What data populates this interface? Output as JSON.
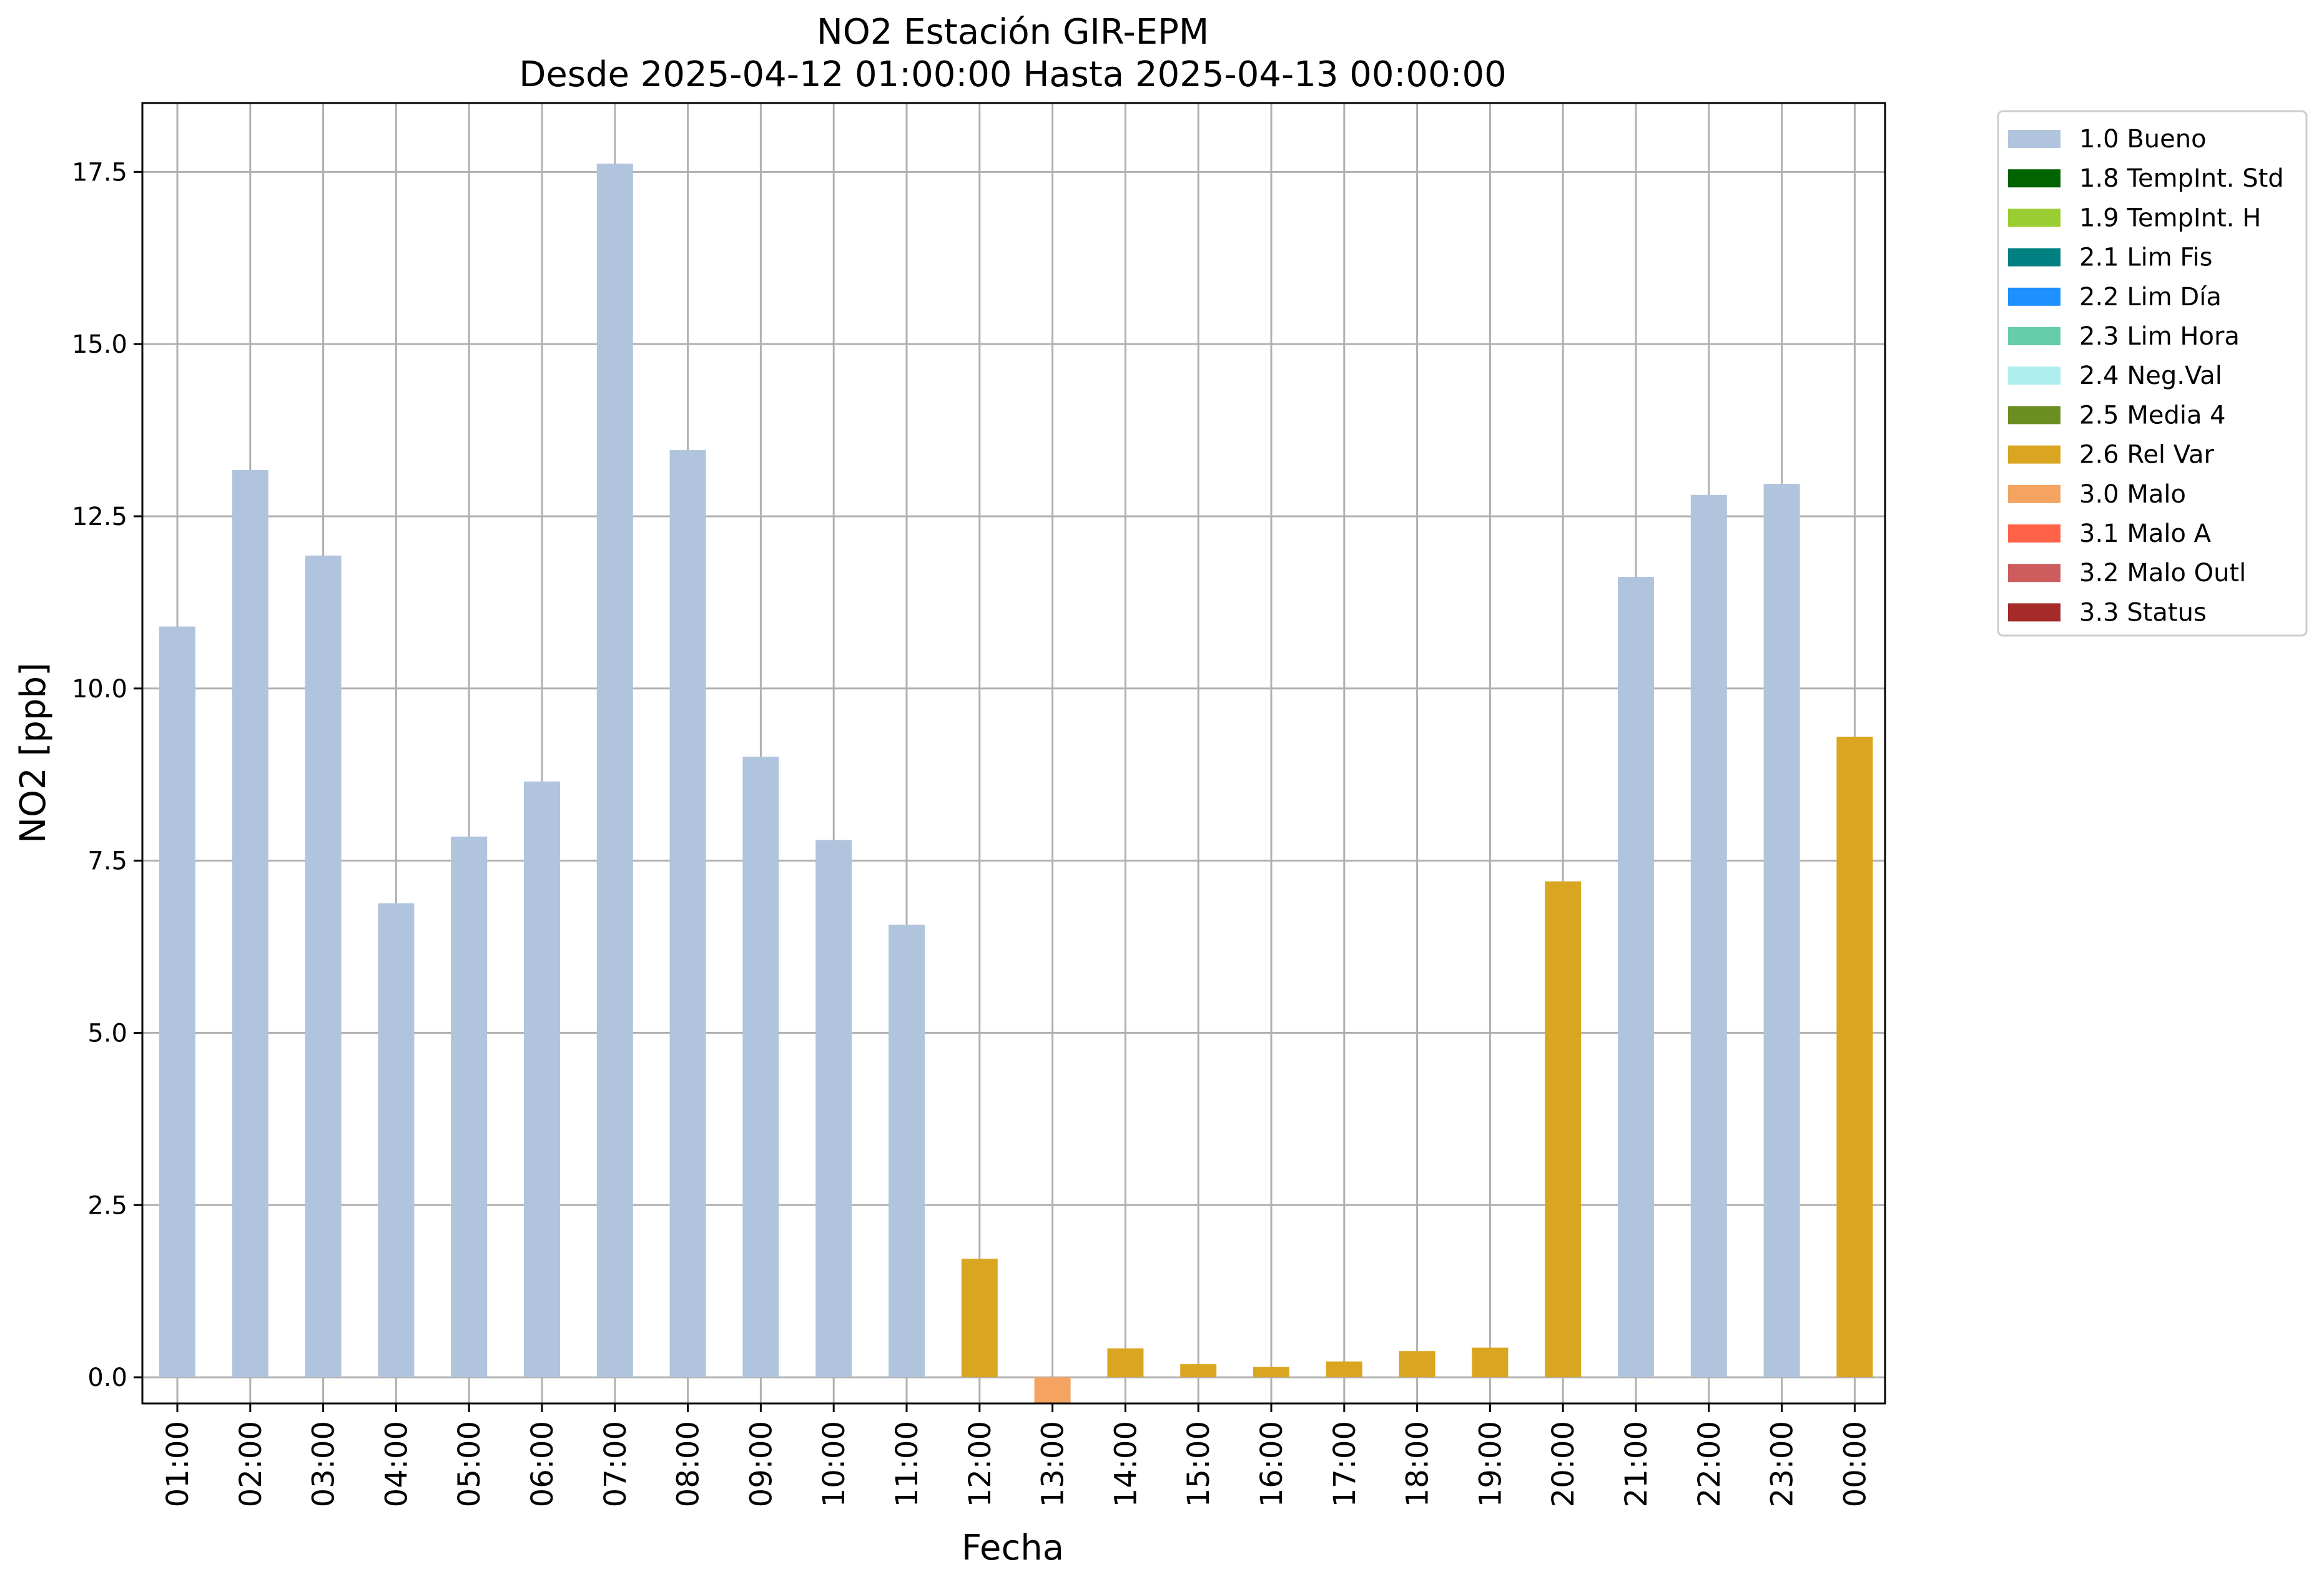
{
  "chart_data": {
    "type": "bar",
    "title": "NO2 Estación GIR-EPM",
    "subtitle": "Desde 2025-04-12 01:00:00 Hasta 2025-04-13 00:00:00",
    "xlabel": "Fecha",
    "ylabel": "NO2 [ppb]",
    "ylim": [
      -0.38,
      18.5
    ],
    "yticks": [
      "0.0",
      "2.5",
      "5.0",
      "7.5",
      "10.0",
      "12.5",
      "15.0",
      "17.5"
    ],
    "grid": true,
    "legend_position": "outside-top-right",
    "categories": [
      "01:00",
      "02:00",
      "03:00",
      "04:00",
      "05:00",
      "06:00",
      "07:00",
      "08:00",
      "09:00",
      "10:00",
      "11:00",
      "12:00",
      "13:00",
      "14:00",
      "15:00",
      "16:00",
      "17:00",
      "18:00",
      "19:00",
      "20:00",
      "21:00",
      "22:00",
      "23:00",
      "00:00"
    ],
    "values": [
      10.9,
      13.17,
      11.93,
      6.88,
      7.85,
      8.65,
      17.62,
      13.46,
      9.01,
      7.8,
      6.57,
      1.72,
      -0.38,
      0.42,
      0.19,
      0.15,
      0.23,
      0.38,
      0.43,
      7.2,
      11.62,
      12.81,
      12.97,
      9.3
    ],
    "flags": [
      "1.0 Bueno",
      "1.0 Bueno",
      "1.0 Bueno",
      "1.0 Bueno",
      "1.0 Bueno",
      "1.0 Bueno",
      "1.0 Bueno",
      "1.0 Bueno",
      "1.0 Bueno",
      "1.0 Bueno",
      "1.0 Bueno",
      "2.6 Rel Var",
      "3.0 Malo",
      "2.6 Rel Var",
      "2.6 Rel Var",
      "2.6 Rel Var",
      "2.6 Rel Var",
      "2.6 Rel Var",
      "2.6 Rel Var",
      "2.6 Rel Var",
      "1.0 Bueno",
      "1.0 Bueno",
      "1.0 Bueno",
      "2.6 Rel Var"
    ],
    "legend": [
      {
        "label": "1.0 Bueno",
        "color": "#b0c4de"
      },
      {
        "label": "1.8 TempInt. Std",
        "color": "#006400"
      },
      {
        "label": "1.9 TempInt. H",
        "color": "#9acd32"
      },
      {
        "label": "2.1 Lim Fis",
        "color": "#008080"
      },
      {
        "label": "2.2 Lim Día",
        "color": "#1e90ff"
      },
      {
        "label": "2.3 Lim Hora",
        "color": "#66cdaa"
      },
      {
        "label": "2.4 Neg.Val",
        "color": "#afeeee"
      },
      {
        "label": "2.5 Media 4",
        "color": "#6b8e23"
      },
      {
        "label": "2.6 Rel Var",
        "color": "#daa520"
      },
      {
        "label": "3.0 Malo",
        "color": "#f4a460"
      },
      {
        "label": "3.1 Malo A",
        "color": "#ff6347"
      },
      {
        "label": "3.2 Malo Outl",
        "color": "#cd5c5c"
      },
      {
        "label": "3.3 Status",
        "color": "#a52a2a"
      }
    ]
  }
}
